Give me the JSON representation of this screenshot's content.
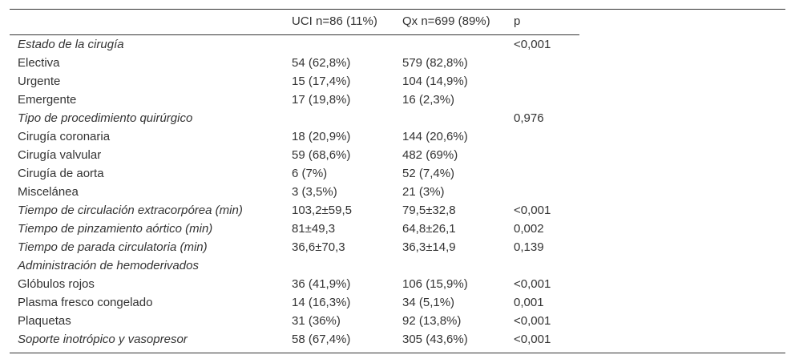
{
  "table": {
    "header": [
      null,
      "UCI n=86 (11%)",
      "Qx n=699 (89%)",
      "p"
    ],
    "rows": [
      {
        "italic": true,
        "cells": [
          "Estado de la cirugía",
          null,
          null,
          "<0,001"
        ]
      },
      {
        "italic": false,
        "cells": [
          "Electiva",
          "54 (62,8%)",
          "579 (82,8%)",
          null
        ]
      },
      {
        "italic": false,
        "cells": [
          "Urgente",
          "15 (17,4%)",
          "104 (14,9%)",
          null
        ]
      },
      {
        "italic": false,
        "cells": [
          "Emergente",
          "17 (19,8%)",
          "16 (2,3%)",
          null
        ]
      },
      {
        "italic": true,
        "cells": [
          "Tipo de procedimiento quirúrgico",
          null,
          null,
          "0,976"
        ]
      },
      {
        "italic": false,
        "cells": [
          "Cirugía coronaria",
          "18 (20,9%)",
          "144 (20,6%)",
          null
        ]
      },
      {
        "italic": false,
        "cells": [
          "Cirugía valvular",
          "59 (68,6%)",
          "482 (69%)",
          null
        ]
      },
      {
        "italic": false,
        "cells": [
          "Cirugía de aorta",
          "6 (7%)",
          "52 (7,4%)",
          null
        ]
      },
      {
        "italic": false,
        "cells": [
          "Miscelánea",
          "3 (3,5%)",
          "21 (3%)",
          null
        ]
      },
      {
        "italic": true,
        "cells": [
          "Tiempo de circulación extracorpórea (min)",
          "103,2±59,5",
          "79,5±32,8",
          "<0,001"
        ]
      },
      {
        "italic": true,
        "cells": [
          "Tiempo de pinzamiento aórtico (min)",
          "81±49,3",
          "64,8±26,1",
          "0,002"
        ]
      },
      {
        "italic": true,
        "cells": [
          "Tiempo de parada circulatoria (min)",
          "36,6±70,3",
          "36,3±14,9",
          "0,139"
        ]
      },
      {
        "italic": true,
        "cells": [
          "Administración de hemoderivados",
          null,
          null,
          null
        ]
      },
      {
        "italic": false,
        "cells": [
          "Glóbulos rojos",
          "36 (41,9%)",
          "106 (15,9%)",
          "<0,001"
        ]
      },
      {
        "italic": false,
        "cells": [
          "Plasma fresco congelado",
          "14 (16,3%)",
          "34 (5,1%)",
          "0,001"
        ]
      },
      {
        "italic": false,
        "cells": [
          "Plaquetas",
          "31 (36%)",
          "92 (13,8%)",
          "<0,001"
        ]
      },
      {
        "italic": true,
        "cells": [
          "Soporte inotrópico y vasopresor",
          "58 (67,4%)",
          "305 (43,6%)",
          "<0,001"
        ]
      }
    ]
  }
}
